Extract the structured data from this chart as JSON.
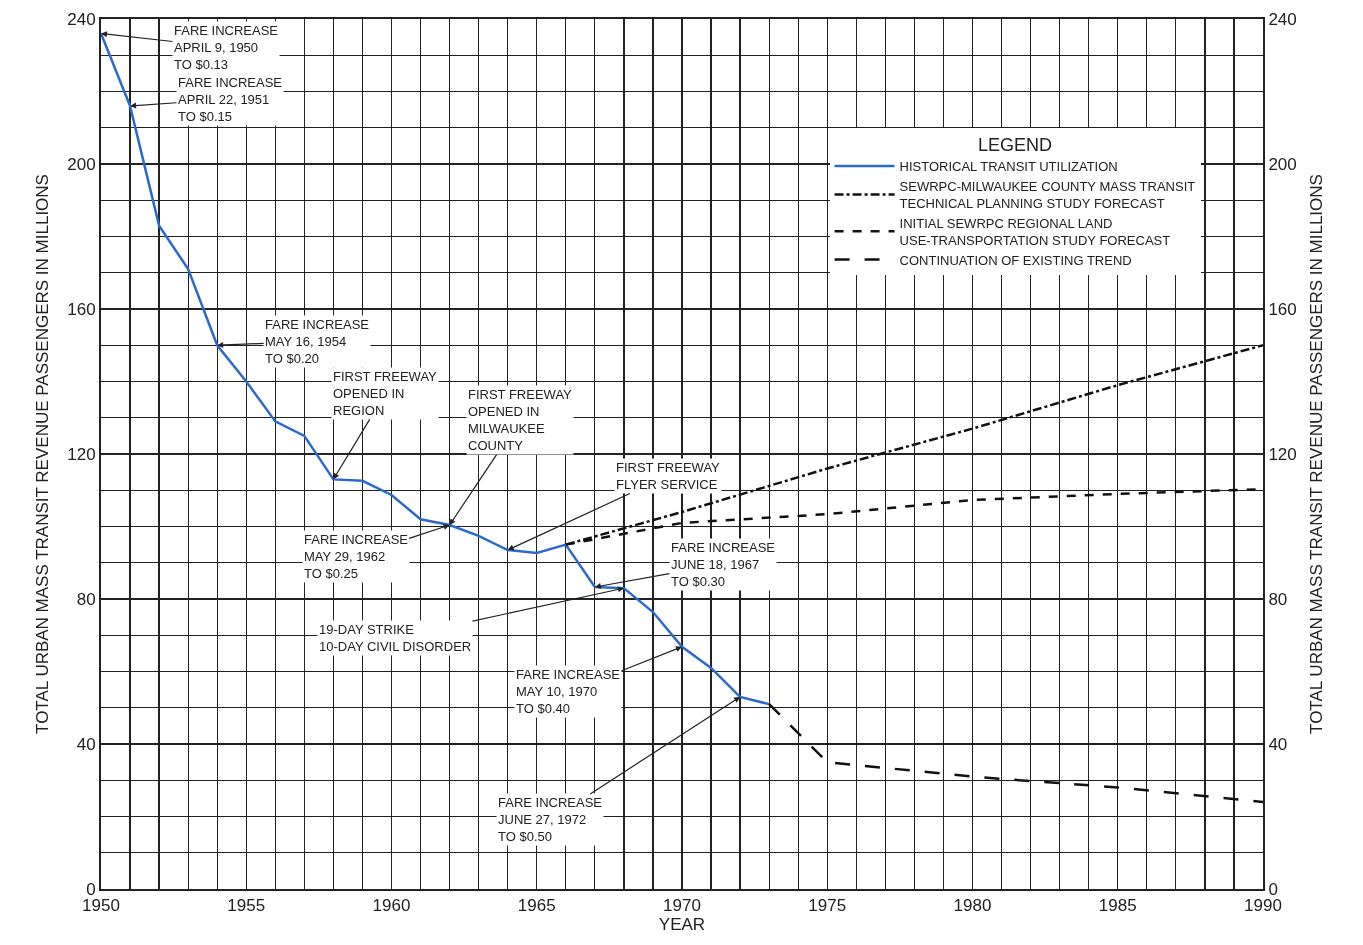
{
  "chart_data": {
    "type": "line",
    "xlabel": "YEAR",
    "ylabel": "TOTAL URBAN MASS TRANSIT REVENUE PASSENGERS IN MILLIONS",
    "y2label": "TOTAL URBAN MASS TRANSIT REVENUE PASSENGERS IN MILLIONS",
    "legend_title": "LEGEND",
    "legend": "top right",
    "grid": true,
    "marker": "none",
    "xlim": [
      1950,
      1990
    ],
    "xticks": [
      1950,
      {
        "value": 1951,
        "label": null
      },
      {
        "value": 1952,
        "label": null
      },
      {
        "value": 1953,
        "label": null
      },
      {
        "value": 1954,
        "label": null
      },
      1955,
      {
        "value": 1956,
        "label": null
      },
      {
        "value": 1957,
        "label": null
      },
      {
        "value": 1958,
        "label": null
      },
      {
        "value": 1959,
        "label": null
      },
      1960,
      {
        "value": 1961,
        "label": null
      },
      {
        "value": 1962,
        "label": null
      },
      {
        "value": 1963,
        "label": null
      },
      {
        "value": 1964,
        "label": null
      },
      1965,
      {
        "value": 1966,
        "label": null
      },
      {
        "value": 1967,
        "label": null
      },
      {
        "value": 1968,
        "label": null
      },
      {
        "value": 1969,
        "label": null
      },
      1970,
      {
        "value": 1971,
        "label": null
      },
      {
        "value": 1972,
        "label": null
      },
      {
        "value": 1973,
        "label": null
      },
      {
        "value": 1974,
        "label": null
      },
      1975,
      {
        "value": 1976,
        "label": null
      },
      {
        "value": 1977,
        "label": null
      },
      {
        "value": 1978,
        "label": null
      },
      {
        "value": 1979,
        "label": null
      },
      1980,
      {
        "value": 1981,
        "label": null
      },
      {
        "value": 1982,
        "label": null
      },
      {
        "value": 1983,
        "label": null
      },
      {
        "value": 1984,
        "label": null
      },
      1985,
      {
        "value": 1986,
        "label": null
      },
      {
        "value": 1987,
        "label": null
      },
      {
        "value": 1988,
        "label": null
      },
      {
        "value": 1989,
        "label": null
      },
      1990
    ],
    "ylim": [
      0,
      240
    ],
    "yticks": [
      0,
      {
        "value": 10,
        "label": null
      },
      {
        "value": 20,
        "label": null
      },
      {
        "value": 30,
        "label": null
      },
      40,
      {
        "value": 50,
        "label": null
      },
      {
        "value": 60,
        "label": null
      },
      {
        "value": 70,
        "label": null
      },
      80,
      {
        "value": 90,
        "label": null
      },
      {
        "value": 100,
        "label": null
      },
      {
        "value": 110,
        "label": null
      },
      120,
      {
        "value": 130,
        "label": null
      },
      {
        "value": 140,
        "label": null
      },
      {
        "value": 150,
        "label": null
      },
      160,
      {
        "value": 170,
        "label": null
      },
      {
        "value": 180,
        "label": null
      },
      {
        "value": 190,
        "label": null
      },
      200,
      {
        "value": 210,
        "label": null
      },
      {
        "value": 220,
        "label": null
      },
      {
        "value": 230,
        "label": null
      },
      240
    ],
    "y2lim": [
      0,
      240
    ],
    "y2ticks": [
      0,
      40,
      80,
      120,
      160,
      200,
      240
    ],
    "series": [
      {
        "name": "HISTORICAL TRANSIT UTILIZATION",
        "color": "#2a6ad0",
        "line_style": "solid",
        "x": [
          1950,
          1951,
          1952,
          1953,
          1954,
          1955,
          1956,
          1957,
          1958,
          1959,
          1960,
          1961,
          1962,
          1963,
          1964,
          1965,
          1966,
          1967,
          1968,
          1969,
          1970,
          1971,
          1972,
          1973
        ],
        "values": [
          236,
          216,
          183,
          171,
          150,
          140,
          129,
          125,
          113,
          112.6,
          108.7,
          102,
          100.4,
          97.4,
          93.5,
          92.7,
          95,
          83.3,
          83,
          76.4,
          66.8,
          61,
          53,
          51
        ]
      },
      {
        "name": "SEWRPC-MILWAUKEE COUNTY MASS TRANSIT TECHNICAL PLANNING STUDY FORECAST",
        "color": "#111111",
        "line_style": "dashdot",
        "x": [
          1966,
          1970,
          1975,
          1980,
          1985,
          1990
        ],
        "values": [
          95,
          104,
          116,
          127,
          139,
          150
        ]
      },
      {
        "name": "INITIAL SEWRPC REGIONAL LAND USE-TRANSPORTATION STUDY FORECAST",
        "color": "#111111",
        "line_style": "dashed",
        "x": [
          1966,
          1970,
          1975,
          1980,
          1985,
          1990
        ],
        "values": [
          95,
          101,
          103.4,
          107.3,
          109,
          110.3
        ]
      },
      {
        "name": "CONTINUATION OF EXISTING TREND",
        "color": "#111111",
        "line_style": "longdash",
        "x": [
          1973,
          1975,
          1980,
          1985,
          1990
        ],
        "values": [
          51,
          35,
          31,
          28,
          24
        ]
      }
    ],
    "annotations": [
      {
        "text": "FARE INCREASE\nAPRIL 9, 1950\nTO $0.13",
        "x": 1950,
        "y": 236
      },
      {
        "text": "FARE INCREASE\nAPRIL 22, 1951\nTO $0.15",
        "x": 1951,
        "y": 216
      },
      {
        "text": "FARE INCREASE\nMAY 16, 1954\nTO $0.20",
        "x": 1954,
        "y": 150
      },
      {
        "text": "FIRST FREEWAY\nOPENED IN\nREGION",
        "x": 1958,
        "y": 113
      },
      {
        "text": "FIRST FREEWAY\nOPENED IN\nMILWAUKEE\nCOUNTY",
        "x": 1962,
        "y": 100.4
      },
      {
        "text": "FIRST FREEWAY\nFLYER SERVICE",
        "x": 1964,
        "y": 93.5
      },
      {
        "text": "FARE INCREASE\nMAY 29, 1962\nTO $0.25",
        "x": 1962,
        "y": 100.4
      },
      {
        "text": "FARE INCREASE\nJUNE 18, 1967\nTO $0.30",
        "x": 1967,
        "y": 83.3
      },
      {
        "text": "19-DAY STRIKE\n10-DAY CIVIL DISORDER",
        "x": 1968,
        "y": 83
      },
      {
        "text": "FARE INCREASE\nMAY 10, 1970\nTO $0.40",
        "x": 1970,
        "y": 66.8
      },
      {
        "text": "FARE INCREASE\nJUNE 27, 1972\nTO $0.50",
        "x": 1972,
        "y": 53
      }
    ]
  }
}
